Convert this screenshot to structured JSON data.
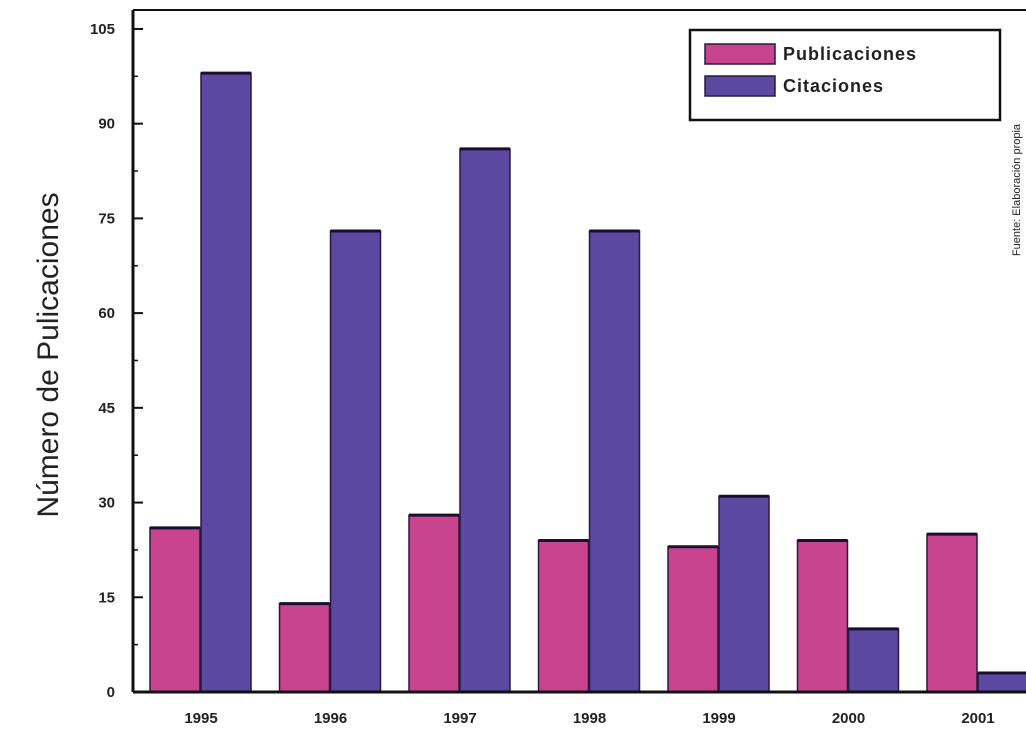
{
  "chart_data": {
    "type": "bar",
    "categories": [
      "1995",
      "1996",
      "1997",
      "1998",
      "1999",
      "2000",
      "2001"
    ],
    "series": [
      {
        "name": "Publicaciones",
        "color": "#c8448e",
        "values": [
          26,
          14,
          28,
          24,
          23,
          24,
          25
        ]
      },
      {
        "name": "Citaciones",
        "color": "#5b48a0",
        "values": [
          98,
          73,
          86,
          73,
          31,
          10,
          3
        ]
      }
    ],
    "ylabel": "Número de Pulicaciones",
    "ylim": [
      0,
      108
    ],
    "yticks": [
      0,
      15,
      30,
      45,
      60,
      75,
      90,
      105
    ],
    "ytick_labels": [
      "0",
      "15",
      "30",
      "45",
      "60",
      "75",
      "90",
      "105"
    ],
    "legend_position": "top-right",
    "source_note": "Fuente: Elaboración propia"
  }
}
